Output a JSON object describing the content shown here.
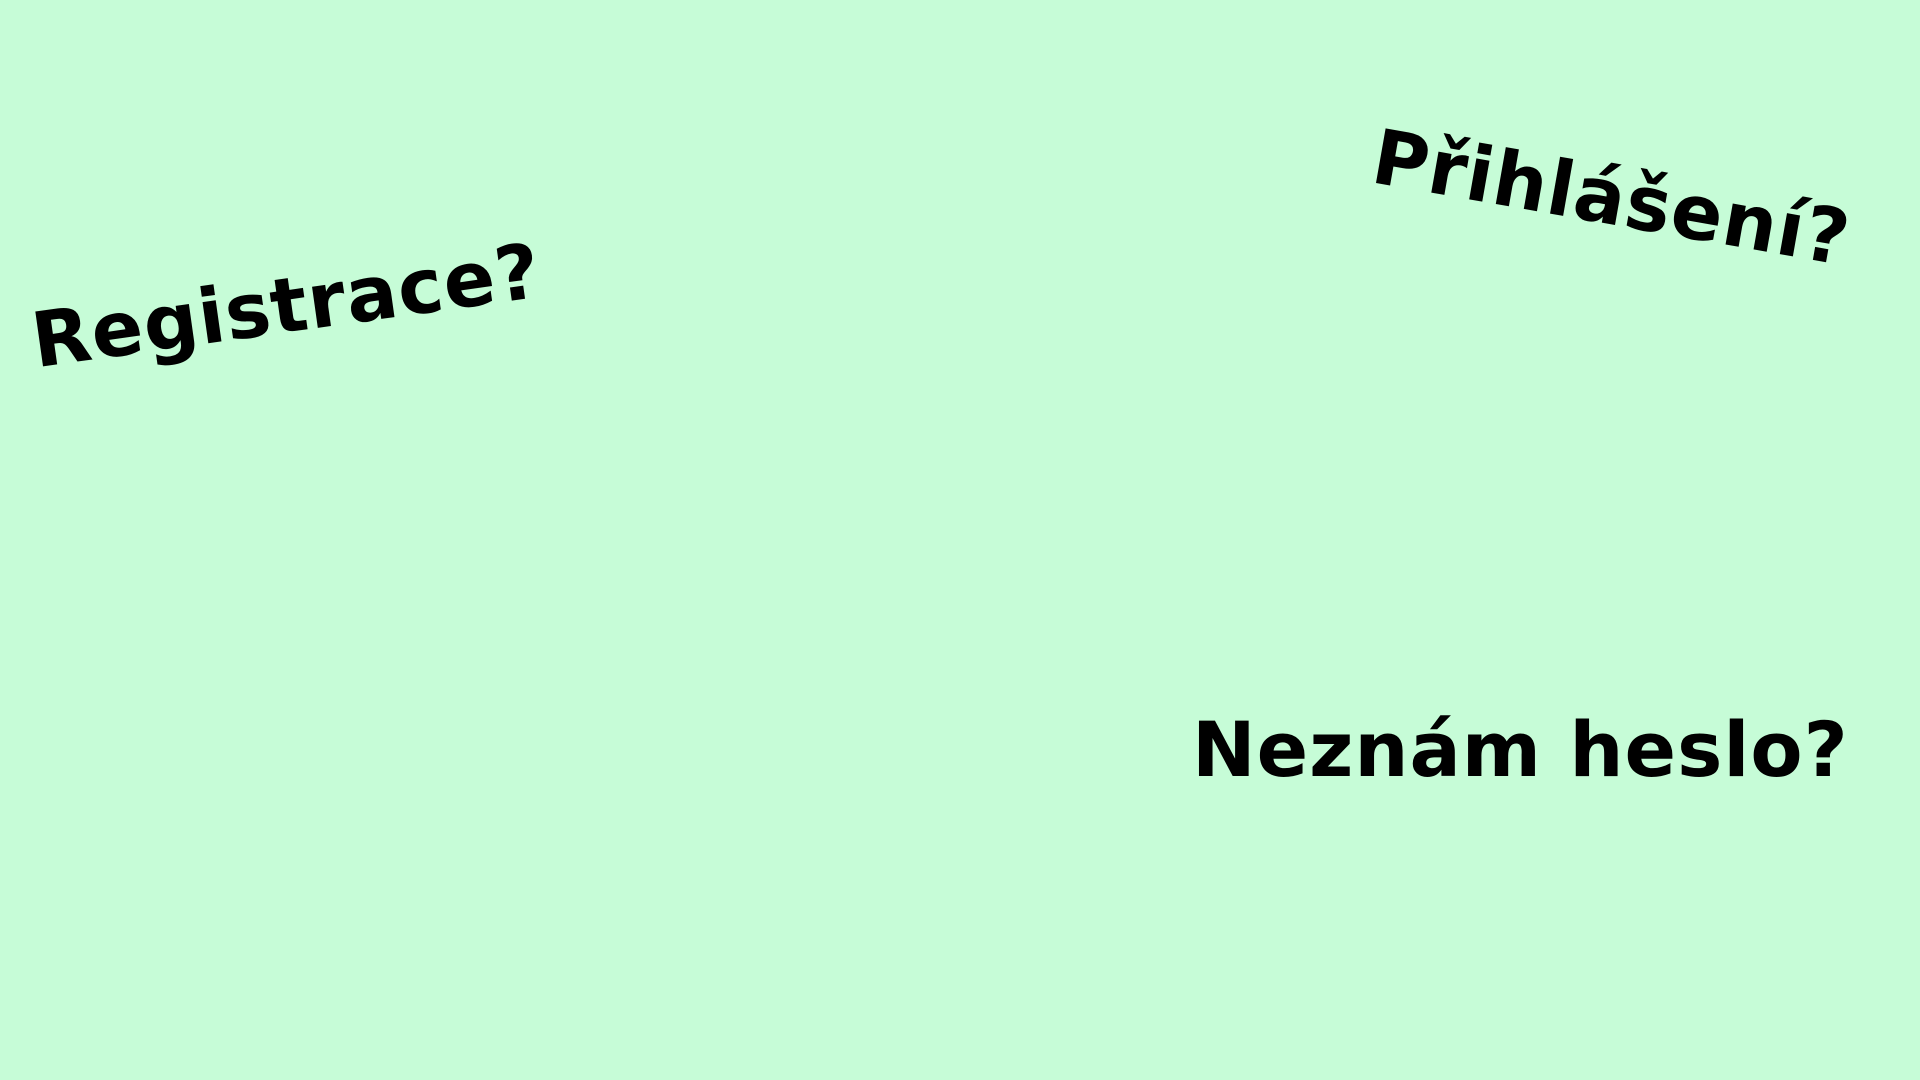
{
  "colors": {
    "background": "#c6fcd7",
    "text": "#000000"
  },
  "links": {
    "register": "Registrace?",
    "login": "Přihlášení?",
    "forgot_password": "Neznám heslo?"
  }
}
